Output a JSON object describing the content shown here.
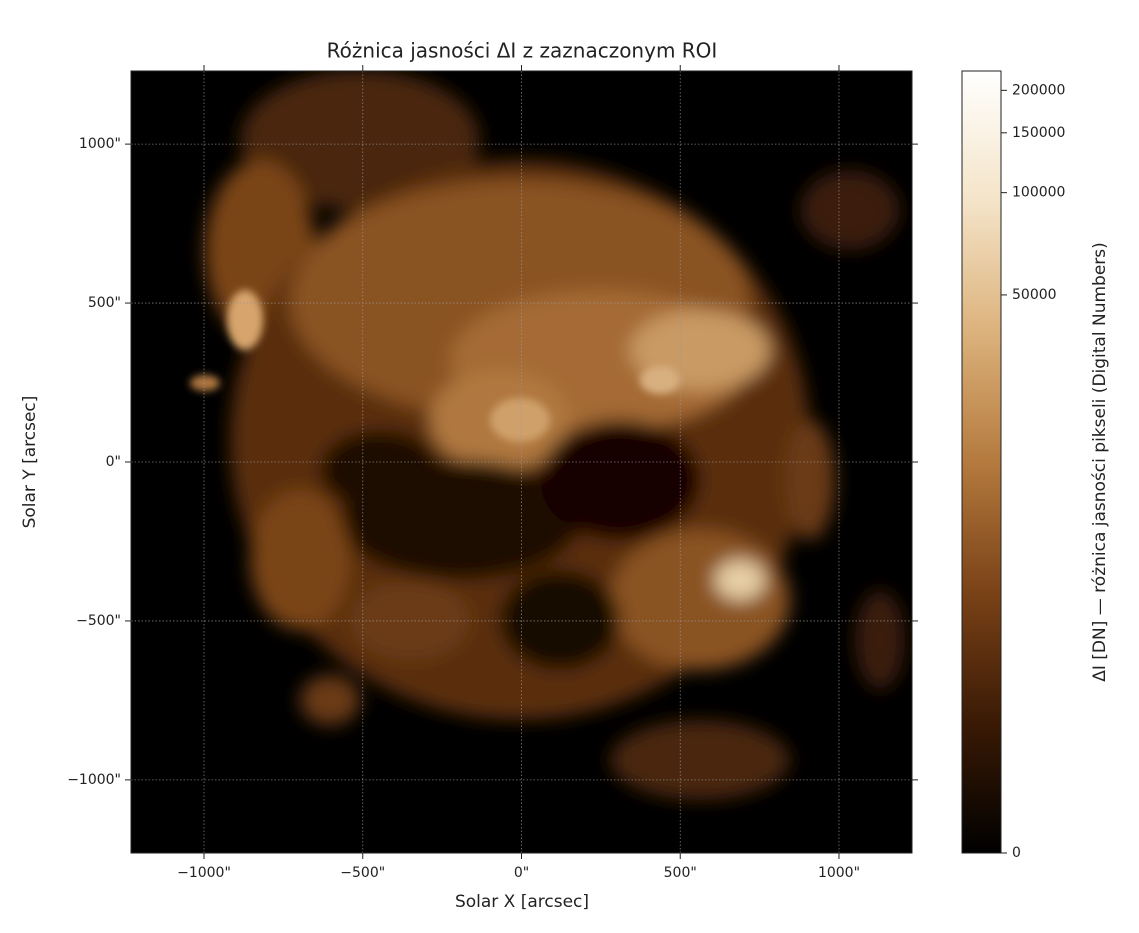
{
  "chart_data": {
    "type": "image",
    "title": "Różnica jasności ΔI z zaznaczonym ROI",
    "xlabel": "Solar X [arcsec]",
    "ylabel": "Solar Y [arcsec]",
    "xlim": [
      -1230,
      1230
    ],
    "ylim": [
      -1230,
      1230
    ],
    "xticks": [
      {
        "value": -1000,
        "label": "−1000\""
      },
      {
        "value": -500,
        "label": "−500\""
      },
      {
        "value": 0,
        "label": "0\""
      },
      {
        "value": 500,
        "label": "500\""
      },
      {
        "value": 1000,
        "label": "1000\""
      }
    ],
    "yticks": [
      {
        "value": -1000,
        "label": "−1000\""
      },
      {
        "value": -500,
        "label": "−500\""
      },
      {
        "value": 0,
        "label": "0\""
      },
      {
        "value": 500,
        "label": "500\""
      },
      {
        "value": 1000,
        "label": "1000\""
      }
    ],
    "grid": true,
    "colormap": [
      "#000000",
      "#3a1a05",
      "#7a4217",
      "#b47a3e",
      "#dcb27c",
      "#f4e4c8",
      "#ffffff"
    ],
    "colorbar": {
      "label": "ΔI [DN] — różnica jasności pikseli (Digital Numbers)",
      "lim": [
        0,
        228000
      ],
      "ticks": [
        0,
        50000,
        100000,
        150000,
        200000
      ],
      "scale": "asinh"
    }
  }
}
